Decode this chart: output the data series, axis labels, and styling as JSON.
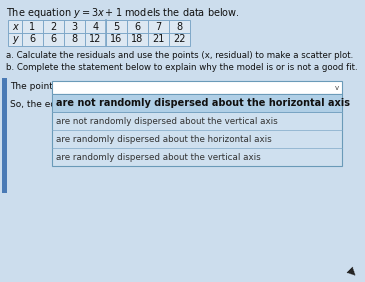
{
  "title_math": "The equation $y = 3x + 1$ models the data below.",
  "x_values": [
    1,
    2,
    3,
    4,
    5,
    6,
    7,
    8
  ],
  "y_values": [
    6,
    6,
    8,
    12,
    16,
    18,
    21,
    22
  ],
  "question_a": "a. Calculate the residuals and use the points (x, residual) to make a scatter plot.",
  "question_b": "b. Complete the statement below to explain why the model is or is not a good fit.",
  "dropdown_label": "The points",
  "so_label": "So, the equ",
  "dropdown_options": [
    "are not randomly dispersed about the horizontal axis",
    "are not randomly dispersed about the vertical axis",
    "are randomly dispersed about the horizontal axis",
    "are randomly dispersed about the vertical axis"
  ],
  "bg_color": "#ccdded",
  "table_bg": "#dde8f2",
  "list_bg": "#cfe0ef",
  "selected_bg": "#b0cfe6",
  "border_color": "#7fa8c8",
  "text_color": "#111111",
  "sidebar_color": "#4a7ab5",
  "dd_border_color": "#6a9ab8"
}
